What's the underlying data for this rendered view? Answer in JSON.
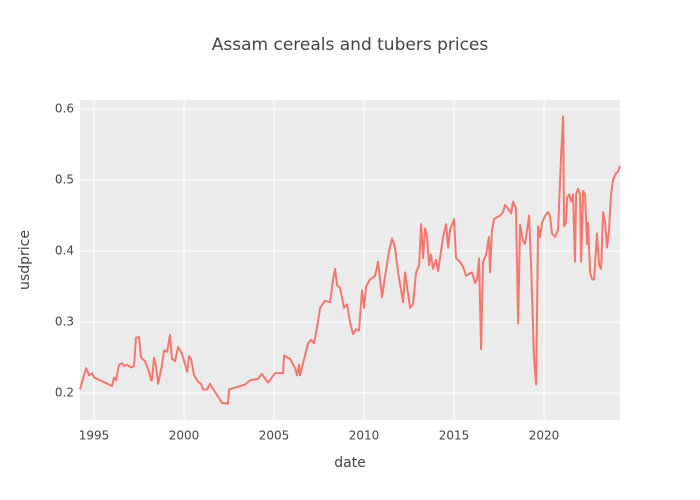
{
  "chart_data": {
    "type": "line",
    "title": "Assam cereals and tubers prices",
    "x_label": "date",
    "y_label": "usdprice",
    "x": [
      1994.22,
      1994.44,
      1994.56,
      1994.72,
      1994.89,
      1995.0,
      1996.0,
      1996.11,
      1996.22,
      1996.39,
      1996.56,
      1996.67,
      1996.83,
      1997.06,
      1997.22,
      1997.33,
      1997.5,
      1997.61,
      1997.83,
      1998.06,
      1998.17,
      1998.22,
      1998.33,
      1998.44,
      1998.56,
      1998.78,
      1998.89,
      1999.06,
      1999.22,
      1999.33,
      1999.5,
      1999.67,
      1999.89,
      2000.06,
      2000.17,
      2000.28,
      2000.39,
      2000.56,
      2000.78,
      2000.94,
      2001.06,
      2001.28,
      2001.44,
      2002.11,
      2002.44,
      2002.5,
      2003.39,
      2003.67,
      2004.11,
      2004.33,
      2004.56,
      2004.67,
      2005.06,
      2005.5,
      2005.56,
      2005.89,
      2006.17,
      2006.28,
      2006.39,
      2006.44,
      2006.61,
      2006.89,
      2007.06,
      2007.22,
      2007.44,
      2007.56,
      2007.83,
      2008.11,
      2008.28,
      2008.39,
      2008.5,
      2008.67,
      2008.89,
      2009.06,
      2009.22,
      2009.39,
      2009.56,
      2009.72,
      2009.89,
      2010.0,
      2010.11,
      2010.33,
      2010.61,
      2010.78,
      2010.89,
      2011.0,
      2011.17,
      2011.39,
      2011.56,
      2011.72,
      2011.89,
      2012.06,
      2012.17,
      2012.28,
      2012.39,
      2012.56,
      2012.72,
      2012.89,
      2013.06,
      2013.17,
      2013.28,
      2013.39,
      2013.5,
      2013.61,
      2013.72,
      2013.83,
      2014.0,
      2014.11,
      2014.22,
      2014.39,
      2014.56,
      2014.67,
      2014.78,
      2015.0,
      2015.11,
      2015.33,
      2015.5,
      2015.67,
      2015.83,
      2016.0,
      2016.17,
      2016.28,
      2016.39,
      2016.5,
      2016.61,
      2016.78,
      2016.94,
      2017.0,
      2017.11,
      2017.22,
      2017.39,
      2017.56,
      2017.72,
      2017.83,
      2018.0,
      2018.17,
      2018.28,
      2018.44,
      2018.56,
      2018.67,
      2018.83,
      2018.94,
      2019.06,
      2019.17,
      2019.28,
      2019.44,
      2019.56,
      2019.67,
      2019.78,
      2019.89,
      2020.06,
      2020.22,
      2020.33,
      2020.44,
      2020.61,
      2020.78,
      2020.94,
      2021.06,
      2021.11,
      2021.22,
      2021.28,
      2021.39,
      2021.5,
      2021.61,
      2021.72,
      2021.78,
      2021.89,
      2022.0,
      2022.06,
      2022.17,
      2022.28,
      2022.39,
      2022.44,
      2022.56,
      2022.67,
      2022.78,
      2022.94,
      2023.06,
      2023.17,
      2023.28,
      2023.39,
      2023.5,
      2023.61,
      2023.72,
      2023.83,
      2024.0,
      2024.11,
      2024.22
    ],
    "series": [
      {
        "name": "usdprice",
        "color": "#F8766D",
        "values": [
          0.205,
          0.225,
          0.235,
          0.225,
          0.228,
          0.222,
          0.21,
          0.222,
          0.218,
          0.24,
          0.242,
          0.238,
          0.24,
          0.236,
          0.238,
          0.278,
          0.279,
          0.25,
          0.245,
          0.23,
          0.218,
          0.218,
          0.25,
          0.238,
          0.213,
          0.24,
          0.26,
          0.258,
          0.282,
          0.248,
          0.245,
          0.265,
          0.255,
          0.24,
          0.23,
          0.252,
          0.248,
          0.225,
          0.216,
          0.213,
          0.205,
          0.205,
          0.213,
          0.186,
          0.185,
          0.205,
          0.212,
          0.218,
          0.22,
          0.227,
          0.218,
          0.215,
          0.228,
          0.228,
          0.253,
          0.248,
          0.235,
          0.225,
          0.24,
          0.225,
          0.242,
          0.27,
          0.275,
          0.27,
          0.3,
          0.32,
          0.33,
          0.328,
          0.36,
          0.375,
          0.352,
          0.348,
          0.32,
          0.325,
          0.3,
          0.283,
          0.29,
          0.288,
          0.345,
          0.32,
          0.35,
          0.36,
          0.365,
          0.385,
          0.36,
          0.335,
          0.365,
          0.4,
          0.418,
          0.405,
          0.37,
          0.345,
          0.328,
          0.37,
          0.35,
          0.32,
          0.325,
          0.37,
          0.38,
          0.438,
          0.39,
          0.432,
          0.42,
          0.38,
          0.395,
          0.375,
          0.388,
          0.372,
          0.39,
          0.42,
          0.438,
          0.405,
          0.43,
          0.445,
          0.39,
          0.385,
          0.378,
          0.365,
          0.368,
          0.37,
          0.355,
          0.36,
          0.39,
          0.262,
          0.385,
          0.395,
          0.42,
          0.37,
          0.43,
          0.445,
          0.448,
          0.45,
          0.455,
          0.465,
          0.46,
          0.453,
          0.47,
          0.46,
          0.298,
          0.437,
          0.415,
          0.41,
          0.43,
          0.45,
          0.38,
          0.25,
          0.212,
          0.435,
          0.42,
          0.44,
          0.45,
          0.455,
          0.45,
          0.425,
          0.42,
          0.43,
          0.53,
          0.59,
          0.435,
          0.44,
          0.475,
          0.48,
          0.47,
          0.48,
          0.385,
          0.48,
          0.488,
          0.48,
          0.385,
          0.485,
          0.48,
          0.41,
          0.44,
          0.37,
          0.36,
          0.36,
          0.425,
          0.38,
          0.375,
          0.455,
          0.44,
          0.405,
          0.43,
          0.48,
          0.5,
          0.51,
          0.512,
          0.52
        ]
      }
    ],
    "xlim": [
      1994.22,
      2024.22
    ],
    "xticks": [
      1995,
      2000,
      2005,
      2010,
      2015,
      2020
    ],
    "ylim": [
      0.162,
      0.613
    ],
    "yticks": [
      0.2,
      0.3,
      0.4,
      0.5,
      0.6
    ],
    "grid": true
  }
}
